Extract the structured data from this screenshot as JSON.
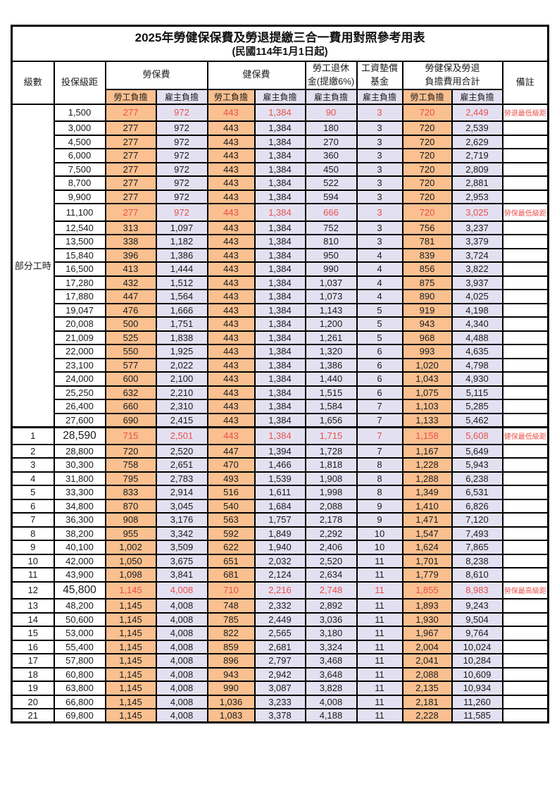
{
  "title": "2025年勞健保保費及勞退提繳三合一費用對照參考用表",
  "subtitle": "(民國114年1月1日起)",
  "colors": {
    "worker_column_bg": "#FAC090",
    "employer_column_bg": "#E3E1F1",
    "highlight_text": "#E9504C",
    "border": "#000000"
  },
  "header": {
    "level": "級數",
    "salary": "投保級距",
    "labor_insurance": "勞保費",
    "health_insurance": "健保費",
    "pension_line1": "勞工退休",
    "pension_line2": "金(提繳6%)",
    "wage_fund_line1": "工資墊償",
    "wage_fund_line2": "基金",
    "total_line1": "勞健保及勞退",
    "total_line2": "負擔費用合計",
    "remark": "備註",
    "worker_label": "勞工負擔",
    "employer_label": "雇主負擔"
  },
  "part_time_label": "部分工時",
  "rows": [
    {
      "lv": "",
      "sal": "1,500",
      "lw": "277",
      "le": "972",
      "hw": "443",
      "he": "1,384",
      "pe": "90",
      "fu": "3",
      "tw": "720",
      "te": "2,449",
      "rm": "勞退最低級距",
      "hl": 1
    },
    {
      "lv": "",
      "sal": "3,000",
      "lw": "277",
      "le": "972",
      "hw": "443",
      "he": "1,384",
      "pe": "180",
      "fu": "3",
      "tw": "720",
      "te": "2,539"
    },
    {
      "lv": "",
      "sal": "4,500",
      "lw": "277",
      "le": "972",
      "hw": "443",
      "he": "1,384",
      "pe": "270",
      "fu": "3",
      "tw": "720",
      "te": "2,629"
    },
    {
      "lv": "",
      "sal": "6,000",
      "lw": "277",
      "le": "972",
      "hw": "443",
      "he": "1,384",
      "pe": "360",
      "fu": "3",
      "tw": "720",
      "te": "2,719"
    },
    {
      "lv": "",
      "sal": "7,500",
      "lw": "277",
      "le": "972",
      "hw": "443",
      "he": "1,384",
      "pe": "450",
      "fu": "3",
      "tw": "720",
      "te": "2,809"
    },
    {
      "lv": "",
      "sal": "8,700",
      "lw": "277",
      "le": "972",
      "hw": "443",
      "he": "1,384",
      "pe": "522",
      "fu": "3",
      "tw": "720",
      "te": "2,881"
    },
    {
      "lv": "",
      "sal": "9,900",
      "lw": "277",
      "le": "972",
      "hw": "443",
      "he": "1,384",
      "pe": "594",
      "fu": "3",
      "tw": "720",
      "te": "2,953"
    },
    {
      "lv": "",
      "sal": "11,100",
      "lw": "277",
      "le": "972",
      "hw": "443",
      "he": "1,384",
      "pe": "666",
      "fu": "3",
      "tw": "720",
      "te": "3,025",
      "rm": "勞保最低級距",
      "hl": 1
    },
    {
      "lv": "",
      "sal": "12,540",
      "lw": "313",
      "le": "1,097",
      "hw": "443",
      "he": "1,384",
      "pe": "752",
      "fu": "3",
      "tw": "756",
      "te": "3,237"
    },
    {
      "lv": "",
      "sal": "13,500",
      "lw": "338",
      "le": "1,182",
      "hw": "443",
      "he": "1,384",
      "pe": "810",
      "fu": "3",
      "tw": "781",
      "te": "3,379"
    },
    {
      "lv": "",
      "sal": "15,840",
      "lw": "396",
      "le": "1,386",
      "hw": "443",
      "he": "1,384",
      "pe": "950",
      "fu": "4",
      "tw": "839",
      "te": "3,724"
    },
    {
      "lv": "",
      "sal": "16,500",
      "lw": "413",
      "le": "1,444",
      "hw": "443",
      "he": "1,384",
      "pe": "990",
      "fu": "4",
      "tw": "856",
      "te": "3,822"
    },
    {
      "lv": "",
      "sal": "17,280",
      "lw": "432",
      "le": "1,512",
      "hw": "443",
      "he": "1,384",
      "pe": "1,037",
      "fu": "4",
      "tw": "875",
      "te": "3,937"
    },
    {
      "lv": "",
      "sal": "17,880",
      "lw": "447",
      "le": "1,564",
      "hw": "443",
      "he": "1,384",
      "pe": "1,073",
      "fu": "4",
      "tw": "890",
      "te": "4,025"
    },
    {
      "lv": "",
      "sal": "19,047",
      "lw": "476",
      "le": "1,666",
      "hw": "443",
      "he": "1,384",
      "pe": "1,143",
      "fu": "5",
      "tw": "919",
      "te": "4,198"
    },
    {
      "lv": "",
      "sal": "20,008",
      "lw": "500",
      "le": "1,751",
      "hw": "443",
      "he": "1,384",
      "pe": "1,200",
      "fu": "5",
      "tw": "943",
      "te": "4,340"
    },
    {
      "lv": "",
      "sal": "21,009",
      "lw": "525",
      "le": "1,838",
      "hw": "443",
      "he": "1,384",
      "pe": "1,261",
      "fu": "5",
      "tw": "968",
      "te": "4,488"
    },
    {
      "lv": "",
      "sal": "22,000",
      "lw": "550",
      "le": "1,925",
      "hw": "443",
      "he": "1,384",
      "pe": "1,320",
      "fu": "6",
      "tw": "993",
      "te": "4,635"
    },
    {
      "lv": "",
      "sal": "23,100",
      "lw": "577",
      "le": "2,022",
      "hw": "443",
      "he": "1,384",
      "pe": "1,386",
      "fu": "6",
      "tw": "1,020",
      "te": "4,798"
    },
    {
      "lv": "",
      "sal": "24,000",
      "lw": "600",
      "le": "2,100",
      "hw": "443",
      "he": "1,384",
      "pe": "1,440",
      "fu": "6",
      "tw": "1,043",
      "te": "4,930"
    },
    {
      "lv": "",
      "sal": "25,250",
      "lw": "632",
      "le": "2,210",
      "hw": "443",
      "he": "1,384",
      "pe": "1,515",
      "fu": "6",
      "tw": "1,075",
      "te": "5,115"
    },
    {
      "lv": "",
      "sal": "26,400",
      "lw": "660",
      "le": "2,310",
      "hw": "443",
      "he": "1,384",
      "pe": "1,584",
      "fu": "7",
      "tw": "1,103",
      "te": "5,285"
    },
    {
      "lv": "",
      "sal": "27,600",
      "lw": "690",
      "le": "2,415",
      "hw": "443",
      "he": "1,384",
      "pe": "1,656",
      "fu": "7",
      "tw": "1,133",
      "te": "5,462"
    },
    {
      "lv": "1",
      "sal": "28,590",
      "lw": "715",
      "le": "2,501",
      "hw": "443",
      "he": "1,384",
      "pe": "1,715",
      "fu": "7",
      "tw": "1,158",
      "te": "5,608",
      "rm": "健保最低級距",
      "hl": 1,
      "big": 1
    },
    {
      "lv": "2",
      "sal": "28,800",
      "lw": "720",
      "le": "2,520",
      "hw": "447",
      "he": "1,394",
      "pe": "1,728",
      "fu": "7",
      "tw": "1,167",
      "te": "5,649"
    },
    {
      "lv": "3",
      "sal": "30,300",
      "lw": "758",
      "le": "2,651",
      "hw": "470",
      "he": "1,466",
      "pe": "1,818",
      "fu": "8",
      "tw": "1,228",
      "te": "5,943"
    },
    {
      "lv": "4",
      "sal": "31,800",
      "lw": "795",
      "le": "2,783",
      "hw": "493",
      "he": "1,539",
      "pe": "1,908",
      "fu": "8",
      "tw": "1,288",
      "te": "6,238"
    },
    {
      "lv": "5",
      "sal": "33,300",
      "lw": "833",
      "le": "2,914",
      "hw": "516",
      "he": "1,611",
      "pe": "1,998",
      "fu": "8",
      "tw": "1,349",
      "te": "6,531"
    },
    {
      "lv": "6",
      "sal": "34,800",
      "lw": "870",
      "le": "3,045",
      "hw": "540",
      "he": "1,684",
      "pe": "2,088",
      "fu": "9",
      "tw": "1,410",
      "te": "6,826"
    },
    {
      "lv": "7",
      "sal": "36,300",
      "lw": "908",
      "le": "3,176",
      "hw": "563",
      "he": "1,757",
      "pe": "2,178",
      "fu": "9",
      "tw": "1,471",
      "te": "7,120"
    },
    {
      "lv": "8",
      "sal": "38,200",
      "lw": "955",
      "le": "3,342",
      "hw": "592",
      "he": "1,849",
      "pe": "2,292",
      "fu": "10",
      "tw": "1,547",
      "te": "7,493"
    },
    {
      "lv": "9",
      "sal": "40,100",
      "lw": "1,002",
      "le": "3,509",
      "hw": "622",
      "he": "1,940",
      "pe": "2,406",
      "fu": "10",
      "tw": "1,624",
      "te": "7,865"
    },
    {
      "lv": "10",
      "sal": "42,000",
      "lw": "1,050",
      "le": "3,675",
      "hw": "651",
      "he": "2,032",
      "pe": "2,520",
      "fu": "11",
      "tw": "1,701",
      "te": "8,238"
    },
    {
      "lv": "11",
      "sal": "43,900",
      "lw": "1,098",
      "le": "3,841",
      "hw": "681",
      "he": "2,124",
      "pe": "2,634",
      "fu": "11",
      "tw": "1,779",
      "te": "8,610"
    },
    {
      "lv": "12",
      "sal": "45,800",
      "lw": "1,145",
      "le": "4,008",
      "hw": "710",
      "he": "2,216",
      "pe": "2,748",
      "fu": "11",
      "tw": "1,855",
      "te": "8,983",
      "rm": "勞保最高級距",
      "hl": 1,
      "big": 1
    },
    {
      "lv": "13",
      "sal": "48,200",
      "lw": "1,145",
      "le": "4,008",
      "hw": "748",
      "he": "2,332",
      "pe": "2,892",
      "fu": "11",
      "tw": "1,893",
      "te": "9,243"
    },
    {
      "lv": "14",
      "sal": "50,600",
      "lw": "1,145",
      "le": "4,008",
      "hw": "785",
      "he": "2,449",
      "pe": "3,036",
      "fu": "11",
      "tw": "1,930",
      "te": "9,504"
    },
    {
      "lv": "15",
      "sal": "53,000",
      "lw": "1,145",
      "le": "4,008",
      "hw": "822",
      "he": "2,565",
      "pe": "3,180",
      "fu": "11",
      "tw": "1,967",
      "te": "9,764"
    },
    {
      "lv": "16",
      "sal": "55,400",
      "lw": "1,145",
      "le": "4,008",
      "hw": "859",
      "he": "2,681",
      "pe": "3,324",
      "fu": "11",
      "tw": "2,004",
      "te": "10,024"
    },
    {
      "lv": "17",
      "sal": "57,800",
      "lw": "1,145",
      "le": "4,008",
      "hw": "896",
      "he": "2,797",
      "pe": "3,468",
      "fu": "11",
      "tw": "2,041",
      "te": "10,284"
    },
    {
      "lv": "18",
      "sal": "60,800",
      "lw": "1,145",
      "le": "4,008",
      "hw": "943",
      "he": "2,942",
      "pe": "3,648",
      "fu": "11",
      "tw": "2,088",
      "te": "10,609"
    },
    {
      "lv": "19",
      "sal": "63,800",
      "lw": "1,145",
      "le": "4,008",
      "hw": "990",
      "he": "3,087",
      "pe": "3,828",
      "fu": "11",
      "tw": "2,135",
      "te": "10,934"
    },
    {
      "lv": "20",
      "sal": "66,800",
      "lw": "1,145",
      "le": "4,008",
      "hw": "1,036",
      "he": "3,233",
      "pe": "4,008",
      "fu": "11",
      "tw": "2,181",
      "te": "11,260"
    },
    {
      "lv": "21",
      "sal": "69,800",
      "lw": "1,145",
      "le": "4,008",
      "hw": "1,083",
      "he": "3,378",
      "pe": "4,188",
      "fu": "11",
      "tw": "2,228",
      "te": "11,585"
    }
  ]
}
